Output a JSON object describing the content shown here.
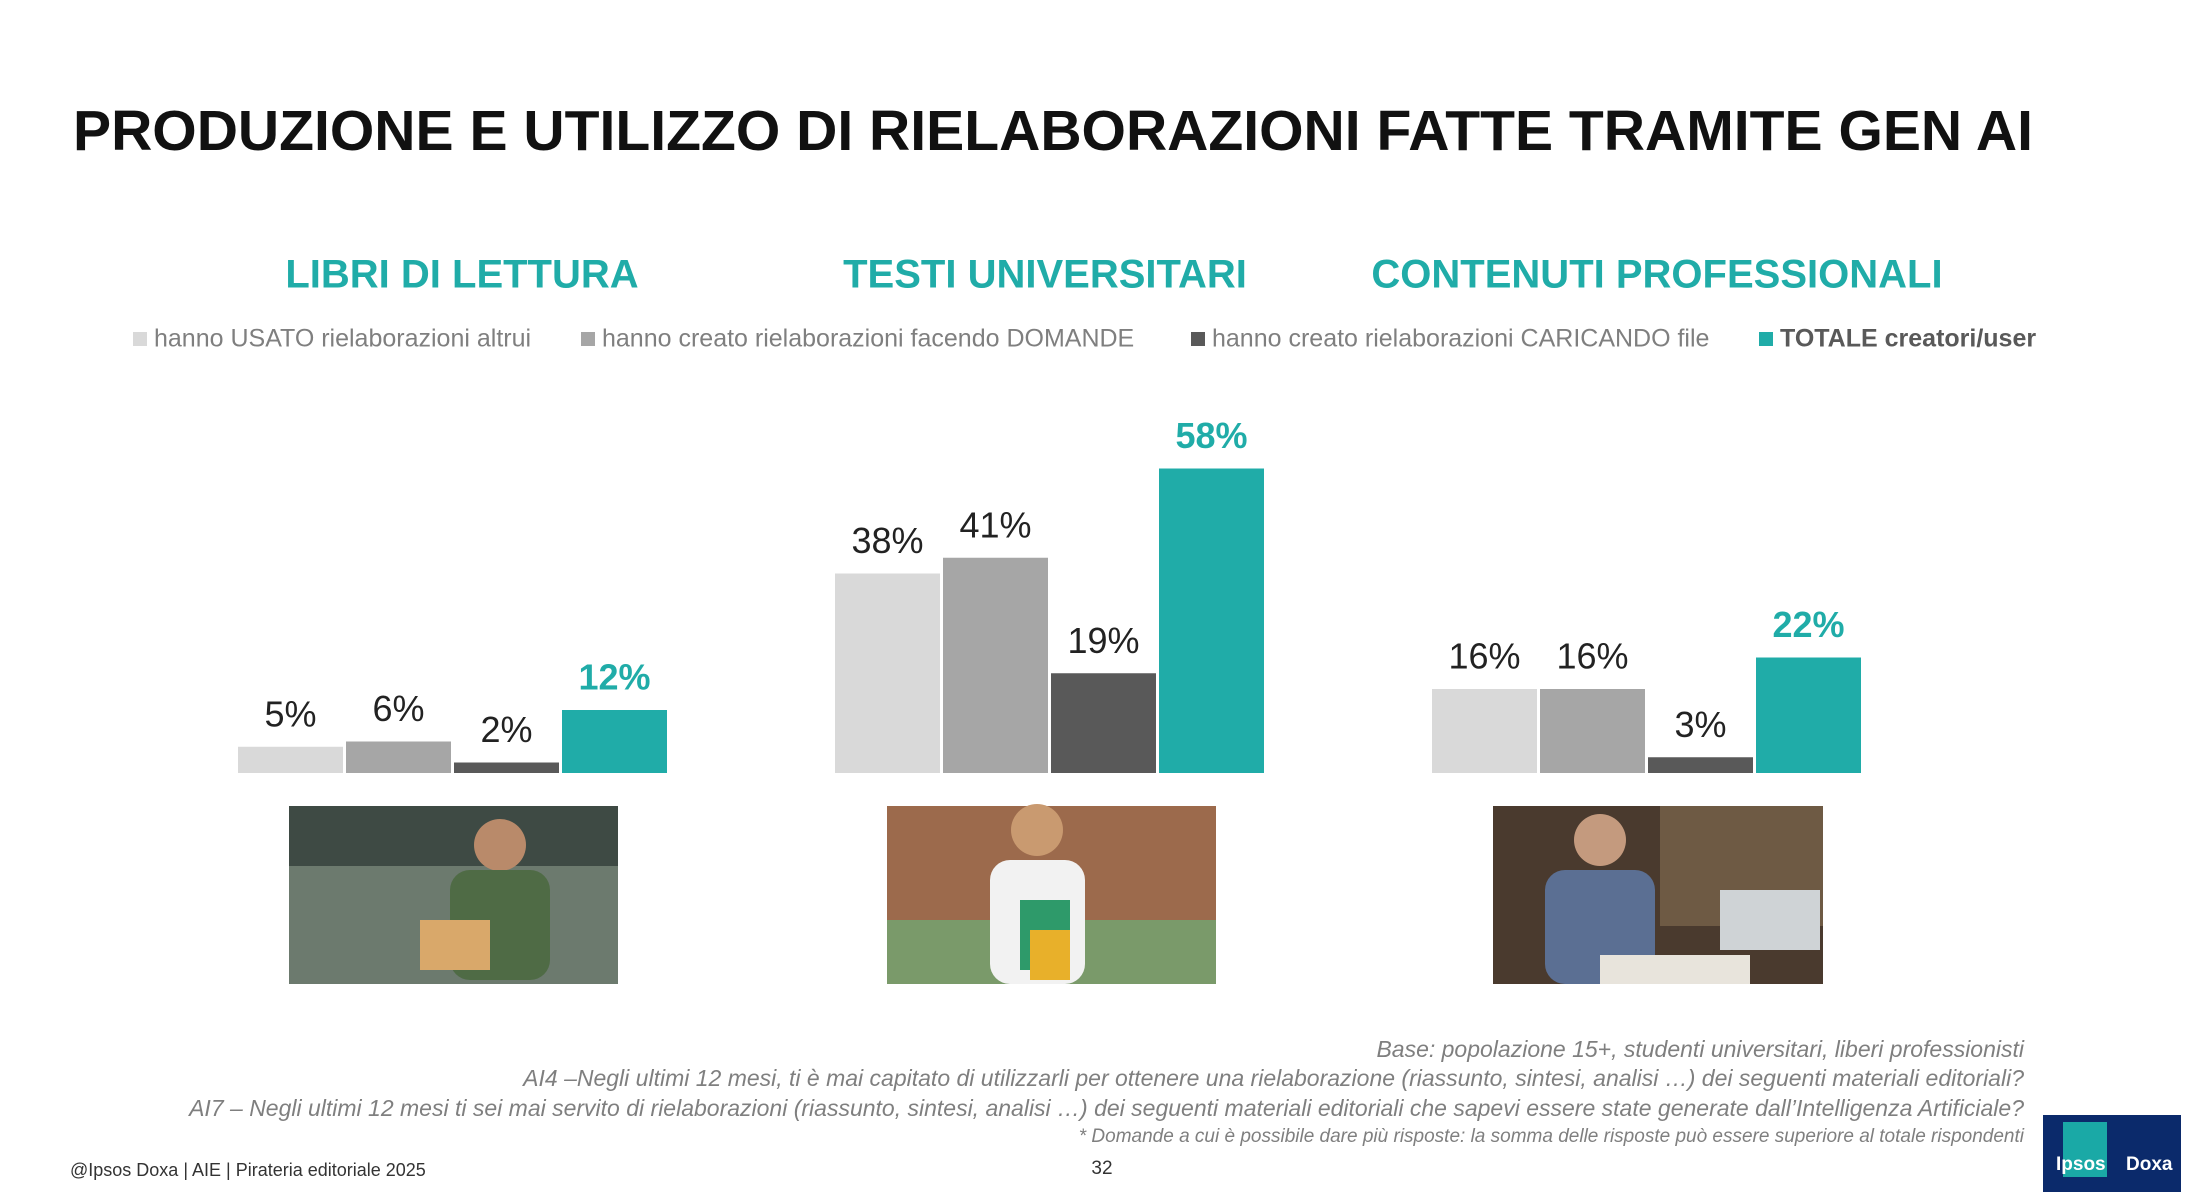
{
  "chart_data": {
    "type": "bar",
    "title": "PRODUZIONE E UTILIZZO DI RIELABORAZIONI FATTE TRAMITE GEN AI",
    "categories": [
      "LIBRI DI LETTURA",
      "TESTI UNIVERSITARI",
      "CONTENUTI PROFESSIONALI"
    ],
    "series": [
      {
        "name": "hanno USATO rielaborazioni altrui",
        "color": "#d9d9d9",
        "values": [
          5,
          38,
          16
        ],
        "value_labels": [
          "5%",
          "38%",
          "16%"
        ]
      },
      {
        "name": "hanno creato rielaborazioni facendo DOMANDE",
        "color": "#a6a6a6",
        "values": [
          6,
          41,
          16
        ],
        "value_labels": [
          "6%",
          "41%",
          "16%"
        ]
      },
      {
        "name": "hanno creato rielaborazioni CARICANDO file",
        "color": "#595959",
        "values": [
          2,
          19,
          3
        ],
        "value_labels": [
          "2%",
          "19%",
          "3%"
        ]
      },
      {
        "name": "TOTALE creatori/user",
        "color": "#20aca8",
        "values": [
          12,
          58,
          22
        ],
        "value_labels": [
          "12%",
          "58%",
          "22%"
        ]
      }
    ],
    "ylim": [
      0,
      60
    ]
  },
  "notes": [
    "Base: popolazione 15+, studenti universitari, liberi professionisti",
    "AI4 –Negli ultimi 12 mesi, ti è mai capitato di utilizzarli per ottenere una rielaborazione (riassunto, sintesi, analisi …) dei seguenti materiali editoriali?",
    "AI7 – Negli ultimi 12 mesi ti sei mai servito di rielaborazioni (riassunto, sintesi, analisi …) dei seguenti materiali editoriali che sapevi essere state generate dall’Intelligenza Artificiale?",
    "* Domande a cui è possibile dare più risposte: la somma delle risposte può essere superiore al totale rispondenti"
  ],
  "footer": "@Ipsos Doxa | AIE | Pirateria editoriale 2025",
  "page_number": "32",
  "logo": [
    "Ipsos",
    "Doxa"
  ]
}
